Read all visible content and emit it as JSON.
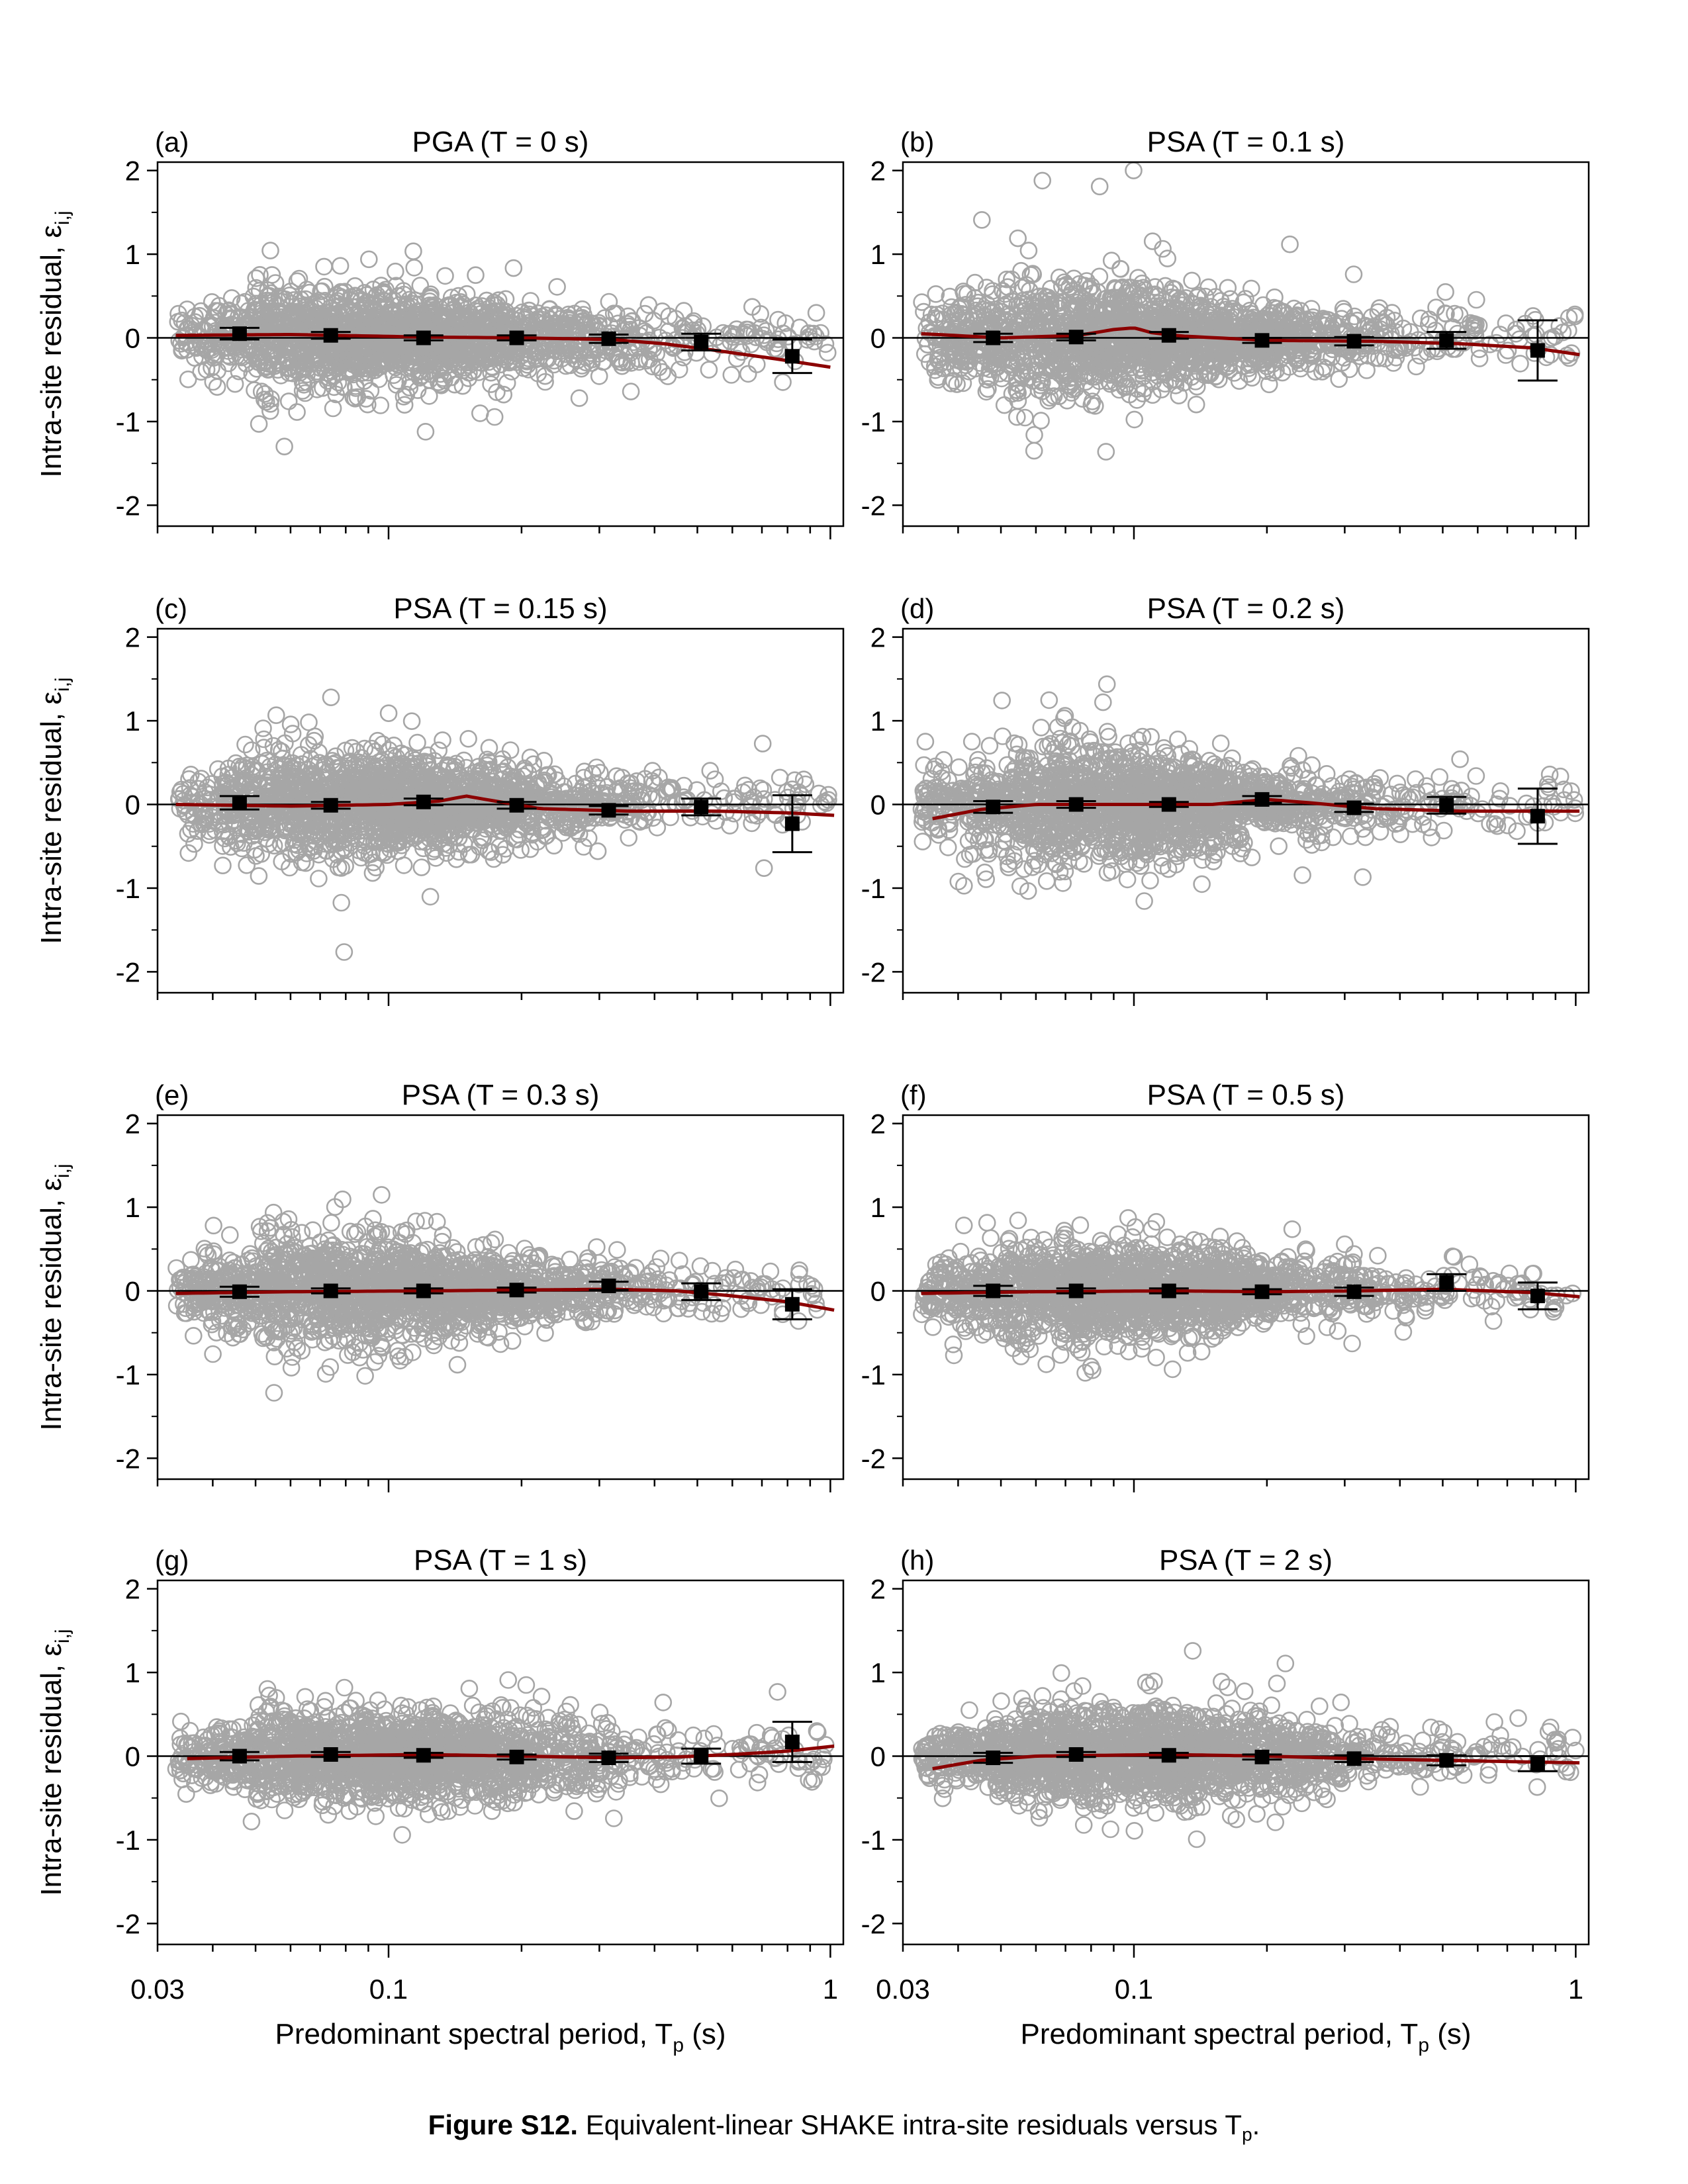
{
  "caption": {
    "label": "Figure S12.",
    "text": "Equivalent-linear SHAKE intra-site residuals versus T",
    "sub": "p",
    "end": "."
  },
  "colors": {
    "scatter": "#a6a6a6",
    "trend": "#8b0000",
    "bins": "#000000",
    "axes": "#000000"
  },
  "chart_data": [
    {
      "type": "scatter",
      "panel": "(a)",
      "title": "PGA (T = 0 s)",
      "xlabel": "Predominant spectral period, T_p (s)",
      "ylabel": "Intra-site residual, ε_i,j",
      "xscale": "log",
      "xlim": [
        0.03,
        1.07
      ],
      "ylim": [
        -2.25,
        2.1
      ],
      "yticks": [
        -2,
        -1,
        0,
        1,
        2
      ],
      "xticklabels": [
        "0.03",
        "0.1",
        "1"
      ],
      "legend": "none",
      "grid": false,
      "zero_line": true,
      "scatter_spread": [
        0.55,
        0.4,
        0.32,
        0.28
      ],
      "trend": {
        "x": [
          0.033,
          0.06,
          0.12,
          0.2,
          0.32,
          0.42,
          0.55,
          0.75,
          1.0
        ],
        "y": [
          0.03,
          0.04,
          0.01,
          0.0,
          -0.02,
          -0.07,
          -0.15,
          -0.25,
          -0.35
        ]
      },
      "bins": [
        {
          "x": 0.046,
          "mean": 0.05,
          "err": 0.07
        },
        {
          "x": 0.074,
          "mean": 0.03,
          "err": 0.04
        },
        {
          "x": 0.12,
          "mean": 0.0,
          "err": 0.03
        },
        {
          "x": 0.195,
          "mean": 0.0,
          "err": 0.03
        },
        {
          "x": 0.315,
          "mean": -0.01,
          "err": 0.05
        },
        {
          "x": 0.51,
          "mean": -0.05,
          "err": 0.1
        },
        {
          "x": 0.82,
          "mean": -0.22,
          "err": 0.2
        }
      ]
    },
    {
      "type": "scatter",
      "panel": "(b)",
      "title": "PSA (T = 0.1 s)",
      "xlabel": "Predominant spectral period, T_p (s)",
      "ylabel": "Intra-site residual, ε_i,j",
      "xscale": "log",
      "xlim": [
        0.03,
        1.07
      ],
      "ylim": [
        -2.25,
        2.1
      ],
      "yticks": [
        -2,
        -1,
        0,
        1,
        2
      ],
      "xticklabels": [
        "0.03",
        "0.1",
        "1"
      ],
      "legend": "none",
      "grid": false,
      "zero_line": true,
      "scatter_spread": [
        0.6,
        0.45,
        0.3,
        0.28
      ],
      "trend": {
        "x": [
          0.033,
          0.05,
          0.075,
          0.09,
          0.1,
          0.11,
          0.13,
          0.2,
          0.35,
          0.55,
          0.8,
          1.02
        ],
        "y": [
          0.05,
          0.0,
          0.03,
          0.1,
          0.12,
          0.06,
          0.02,
          -0.03,
          -0.04,
          -0.07,
          -0.12,
          -0.2
        ]
      },
      "bins": [
        {
          "x": 0.048,
          "mean": 0.0,
          "err": 0.05
        },
        {
          "x": 0.074,
          "mean": 0.01,
          "err": 0.04
        },
        {
          "x": 0.12,
          "mean": 0.03,
          "err": 0.04
        },
        {
          "x": 0.195,
          "mean": -0.03,
          "err": 0.03
        },
        {
          "x": 0.315,
          "mean": -0.04,
          "err": 0.05
        },
        {
          "x": 0.51,
          "mean": -0.03,
          "err": 0.1
        },
        {
          "x": 0.82,
          "mean": -0.15,
          "err": 0.36
        }
      ]
    },
    {
      "type": "scatter",
      "panel": "(c)",
      "title": "PSA (T = 0.15 s)",
      "xlabel": "Predominant spectral period, T_p (s)",
      "ylabel": "Intra-site residual, ε_i,j",
      "xscale": "log",
      "xlim": [
        0.03,
        1.07
      ],
      "ylim": [
        -2.25,
        2.1
      ],
      "yticks": [
        -2,
        -1,
        0,
        1,
        2
      ],
      "xticklabels": [
        "0.03",
        "0.1",
        "1"
      ],
      "legend": "none",
      "grid": false,
      "zero_line": true,
      "scatter_spread": [
        0.6,
        0.45,
        0.32,
        0.28
      ],
      "trend": {
        "x": [
          0.033,
          0.06,
          0.1,
          0.13,
          0.15,
          0.17,
          0.22,
          0.35,
          0.55,
          0.8,
          1.02
        ],
        "y": [
          0.0,
          -0.02,
          0.0,
          0.04,
          0.1,
          0.05,
          -0.05,
          -0.08,
          -0.08,
          -0.1,
          -0.13
        ]
      },
      "bins": [
        {
          "x": 0.046,
          "mean": 0.02,
          "err": 0.08
        },
        {
          "x": 0.074,
          "mean": -0.01,
          "err": 0.04
        },
        {
          "x": 0.12,
          "mean": 0.03,
          "err": 0.04
        },
        {
          "x": 0.195,
          "mean": -0.01,
          "err": 0.04
        },
        {
          "x": 0.315,
          "mean": -0.07,
          "err": 0.05
        },
        {
          "x": 0.51,
          "mean": -0.03,
          "err": 0.1
        },
        {
          "x": 0.82,
          "mean": -0.23,
          "err": 0.34
        }
      ]
    },
    {
      "type": "scatter",
      "panel": "(d)",
      "title": "PSA (T = 0.2 s)",
      "xlabel": "Predominant spectral period, T_p (s)",
      "ylabel": "Intra-site residual, ε_i,j",
      "xscale": "log",
      "xlim": [
        0.03,
        1.07
      ],
      "ylim": [
        -2.25,
        2.1
      ],
      "yticks": [
        -2,
        -1,
        0,
        1,
        2
      ],
      "xticklabels": [
        "0.03",
        "0.1",
        "1"
      ],
      "legend": "none",
      "grid": false,
      "zero_line": true,
      "scatter_spread": [
        0.62,
        0.48,
        0.33,
        0.28
      ],
      "trend": {
        "x": [
          0.035,
          0.045,
          0.06,
          0.1,
          0.15,
          0.2,
          0.25,
          0.35,
          0.55,
          0.8,
          1.02
        ],
        "y": [
          -0.17,
          -0.06,
          0.0,
          0.0,
          0.0,
          0.06,
          0.02,
          -0.05,
          -0.08,
          -0.08,
          -0.08
        ]
      },
      "bins": [
        {
          "x": 0.048,
          "mean": -0.03,
          "err": 0.07
        },
        {
          "x": 0.074,
          "mean": 0.0,
          "err": 0.04
        },
        {
          "x": 0.12,
          "mean": 0.0,
          "err": 0.03
        },
        {
          "x": 0.195,
          "mean": 0.06,
          "err": 0.04
        },
        {
          "x": 0.315,
          "mean": -0.04,
          "err": 0.05
        },
        {
          "x": 0.51,
          "mean": -0.01,
          "err": 0.1
        },
        {
          "x": 0.82,
          "mean": -0.14,
          "err": 0.33
        }
      ]
    },
    {
      "type": "scatter",
      "panel": "(e)",
      "title": "PSA (T = 0.3 s)",
      "xlabel": "Predominant spectral period, T_p (s)",
      "ylabel": "Intra-site residual, ε_i,j",
      "xscale": "log",
      "xlim": [
        0.03,
        1.07
      ],
      "ylim": [
        -2.25,
        2.1
      ],
      "yticks": [
        -2,
        -1,
        0,
        1,
        2
      ],
      "xticklabels": [
        "0.03",
        "0.1",
        "1"
      ],
      "legend": "none",
      "grid": false,
      "zero_line": true,
      "scatter_spread": [
        0.58,
        0.45,
        0.32,
        0.25
      ],
      "trend": {
        "x": [
          0.033,
          0.06,
          0.12,
          0.2,
          0.32,
          0.45,
          0.6,
          0.8,
          1.02
        ],
        "y": [
          -0.03,
          -0.01,
          0.0,
          0.01,
          0.02,
          0.0,
          -0.06,
          -0.13,
          -0.23
        ]
      },
      "bins": [
        {
          "x": 0.046,
          "mean": -0.01,
          "err": 0.06
        },
        {
          "x": 0.074,
          "mean": 0.0,
          "err": 0.03
        },
        {
          "x": 0.12,
          "mean": 0.0,
          "err": 0.03
        },
        {
          "x": 0.195,
          "mean": 0.01,
          "err": 0.03
        },
        {
          "x": 0.315,
          "mean": 0.06,
          "err": 0.05
        },
        {
          "x": 0.51,
          "mean": -0.01,
          "err": 0.1
        },
        {
          "x": 0.82,
          "mean": -0.16,
          "err": 0.18
        }
      ]
    },
    {
      "type": "scatter",
      "panel": "(f)",
      "title": "PSA (T = 0.5 s)",
      "xlabel": "Predominant spectral period, T_p (s)",
      "ylabel": "Intra-site residual, ε_i,j",
      "xscale": "log",
      "xlim": [
        0.03,
        1.07
      ],
      "ylim": [
        -2.25,
        2.1
      ],
      "yticks": [
        -2,
        -1,
        0,
        1,
        2
      ],
      "xticklabels": [
        "0.03",
        "0.1",
        "1"
      ],
      "legend": "none",
      "grid": false,
      "zero_line": true,
      "scatter_spread": [
        0.5,
        0.42,
        0.32,
        0.24
      ],
      "trend": {
        "x": [
          0.033,
          0.06,
          0.12,
          0.2,
          0.32,
          0.5,
          0.8,
          1.02
        ],
        "y": [
          -0.03,
          -0.01,
          0.0,
          -0.01,
          0.0,
          0.02,
          -0.02,
          -0.07
        ]
      },
      "bins": [
        {
          "x": 0.048,
          "mean": 0.0,
          "err": 0.06
        },
        {
          "x": 0.074,
          "mean": 0.0,
          "err": 0.03
        },
        {
          "x": 0.12,
          "mean": 0.0,
          "err": 0.03
        },
        {
          "x": 0.195,
          "mean": -0.01,
          "err": 0.03
        },
        {
          "x": 0.315,
          "mean": -0.01,
          "err": 0.05
        },
        {
          "x": 0.51,
          "mean": 0.1,
          "err": 0.1
        },
        {
          "x": 0.82,
          "mean": -0.06,
          "err": 0.16
        }
      ]
    },
    {
      "type": "scatter",
      "panel": "(g)",
      "title": "PSA (T = 1 s)",
      "xlabel": "Predominant spectral period, T_p (s)",
      "ylabel": "Intra-site residual, ε_i,j",
      "xscale": "log",
      "xlim": [
        0.03,
        1.07
      ],
      "ylim": [
        -2.25,
        2.1
      ],
      "yticks": [
        -2,
        -1,
        0,
        1,
        2
      ],
      "xticklabels": [
        "0.03",
        "0.1",
        "1"
      ],
      "legend": "none",
      "grid": false,
      "zero_line": true,
      "scatter_spread": [
        0.42,
        0.38,
        0.42,
        0.3
      ],
      "trend": {
        "x": [
          0.035,
          0.06,
          0.12,
          0.2,
          0.32,
          0.45,
          0.6,
          0.8,
          1.02
        ],
        "y": [
          -0.03,
          0.0,
          0.02,
          0.0,
          -0.02,
          -0.01,
          0.02,
          0.06,
          0.12
        ]
      },
      "bins": [
        {
          "x": 0.046,
          "mean": 0.0,
          "err": 0.05
        },
        {
          "x": 0.074,
          "mean": 0.02,
          "err": 0.03
        },
        {
          "x": 0.12,
          "mean": 0.01,
          "err": 0.03
        },
        {
          "x": 0.195,
          "mean": -0.01,
          "err": 0.03
        },
        {
          "x": 0.315,
          "mean": -0.02,
          "err": 0.05
        },
        {
          "x": 0.51,
          "mean": 0.0,
          "err": 0.09
        },
        {
          "x": 0.82,
          "mean": 0.17,
          "err": 0.24
        }
      ]
    },
    {
      "type": "scatter",
      "panel": "(h)",
      "title": "PSA (T = 2 s)",
      "xlabel": "Predominant spectral period, T_p (s)",
      "ylabel": "Intra-site residual, ε_i,j",
      "xscale": "log",
      "xlim": [
        0.03,
        1.07
      ],
      "ylim": [
        -2.25,
        2.1
      ],
      "yticks": [
        -2,
        -1,
        0,
        1,
        2
      ],
      "xticklabels": [
        "0.03",
        "0.1",
        "1"
      ],
      "legend": "none",
      "grid": false,
      "zero_line": true,
      "scatter_spread": [
        0.42,
        0.45,
        0.42,
        0.22
      ],
      "trend": {
        "x": [
          0.035,
          0.045,
          0.06,
          0.12,
          0.2,
          0.32,
          0.5,
          0.8,
          1.02
        ],
        "y": [
          -0.15,
          -0.05,
          0.0,
          0.02,
          0.0,
          -0.03,
          -0.05,
          -0.07,
          -0.08
        ]
      },
      "bins": [
        {
          "x": 0.048,
          "mean": -0.02,
          "err": 0.06
        },
        {
          "x": 0.074,
          "mean": 0.02,
          "err": 0.03
        },
        {
          "x": 0.12,
          "mean": 0.01,
          "err": 0.03
        },
        {
          "x": 0.195,
          "mean": -0.01,
          "err": 0.03
        },
        {
          "x": 0.315,
          "mean": -0.03,
          "err": 0.04
        },
        {
          "x": 0.51,
          "mean": -0.05,
          "err": 0.06
        },
        {
          "x": 0.82,
          "mean": -0.09,
          "err": 0.09
        }
      ]
    }
  ]
}
